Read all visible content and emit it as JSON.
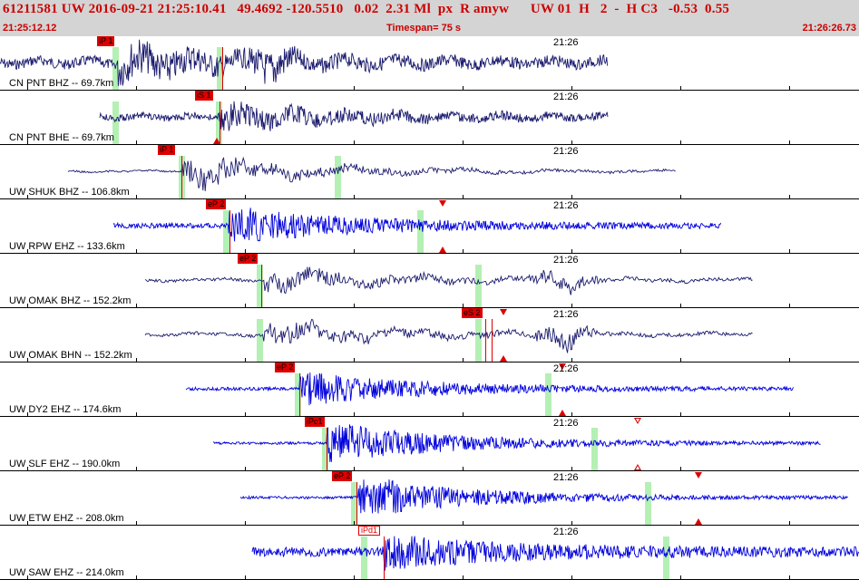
{
  "header": {
    "event_line": "61211581 UW 2016-09-21 21:25:10.41   49.4692 -120.5510   0.02  2.31 Ml  px  R amyw      UW 01  H   2  -  H C3   -0.53  0.55",
    "start_time": "21:25:12.12",
    "timespan": "Timespan=  75 s",
    "end_time": "21:26:26.73"
  },
  "panels": [
    {
      "label": "CN PNT BHZ -- 69.7km",
      "time": "21:26",
      "color": "#1a1a6e",
      "start": 0,
      "end": 670,
      "onset": 130,
      "peak": 300,
      "amp": 0.85,
      "noise": 0.22,
      "kind": "mix",
      "picks": [
        {
          "text": "iP 1",
          "style": "fill"
        }
      ],
      "markers": []
    },
    {
      "label": "CN PNT BHE -- 69.7km",
      "time": "21:26",
      "color": "#1a1a6e",
      "start": 110,
      "end": 670,
      "onset": 240,
      "peak": 260,
      "amp": 0.6,
      "noise": 0.15,
      "kind": "mix",
      "picks": [
        {
          "text": "iS 1",
          "style": "fill"
        }
      ],
      "markers": [
        "up"
      ]
    },
    {
      "label": "UW SHUK BHZ -- 106.8km",
      "time": "21:26",
      "color": "#1a1a6e",
      "start": 75,
      "end": 745,
      "onset": 200,
      "peak": 250,
      "amp": 0.75,
      "noise": 0.05,
      "kind": "low",
      "picks": [
        {
          "text": "iP 1",
          "style": "fill"
        }
      ],
      "markers": []
    },
    {
      "label": "UW RPW EHZ -- 133.6km",
      "time": "21:26",
      "color": "#0000dd",
      "start": 125,
      "end": 795,
      "onset": 252,
      "peak": 280,
      "amp": 0.75,
      "noise": 0.1,
      "kind": "hf",
      "picks": [
        {
          "text": "eP 2",
          "style": "fill"
        }
      ],
      "markers": [
        "down",
        "up"
      ]
    },
    {
      "label": "UW OMAK BHZ -- 152.2km",
      "time": "21:26",
      "color": "#1a1a6e",
      "start": 160,
      "end": 830,
      "onset": 290,
      "peak": 620,
      "amp": 0.55,
      "noise": 0.08,
      "kind": "low",
      "picks": [
        {
          "text": "eP 2",
          "style": "fill"
        }
      ],
      "markers": []
    },
    {
      "label": "UW OMAK BHN -- 152.2km",
      "time": "21:26",
      "color": "#1a1a6e",
      "start": 160,
      "end": 830,
      "onset": 290,
      "peak": 620,
      "amp": 0.6,
      "noise": 0.08,
      "kind": "low",
      "picks": [
        {
          "text": "eS 2",
          "style": "fill"
        }
      ],
      "markers": [
        "down",
        "up"
      ]
    },
    {
      "label": "UW DY2 EHZ -- 174.6km",
      "time": "21:26",
      "color": "#0000dd",
      "start": 205,
      "end": 875,
      "onset": 330,
      "peak": 360,
      "amp": 0.7,
      "noise": 0.06,
      "kind": "hf",
      "picks": [
        {
          "text": "eP 2",
          "style": "fill"
        }
      ],
      "markers": [
        "down",
        "up"
      ]
    },
    {
      "label": "UW SLF EHZ -- 190.0km",
      "time": "21:26",
      "color": "#0000dd",
      "start": 235,
      "end": 905,
      "onset": 360,
      "peak": 390,
      "amp": 0.8,
      "noise": 0.05,
      "kind": "hf",
      "picks": [
        {
          "text": "iPc1",
          "style": "fill"
        }
      ],
      "markers": [
        "open-down",
        "open-up"
      ]
    },
    {
      "label": "UW ETW EHZ -- 208.0km",
      "time": "21:26",
      "color": "#0000dd",
      "start": 265,
      "end": 935,
      "onset": 395,
      "peak": 425,
      "amp": 0.75,
      "noise": 0.05,
      "kind": "hf",
      "picks": [
        {
          "text": "eP 2",
          "style": "fill"
        }
      ],
      "markers": [
        "down",
        "up"
      ]
    },
    {
      "label": "UW SAW EHZ -- 214.0km",
      "time": "21:26",
      "color": "#0000dd",
      "start": 278,
      "end": 947,
      "onset": 422,
      "peak": 440,
      "amp": 0.75,
      "noise": 0.18,
      "kind": "hf",
      "picks": [
        {
          "text": "iPd1",
          "style": "outline"
        }
      ],
      "markers": []
    }
  ]
}
